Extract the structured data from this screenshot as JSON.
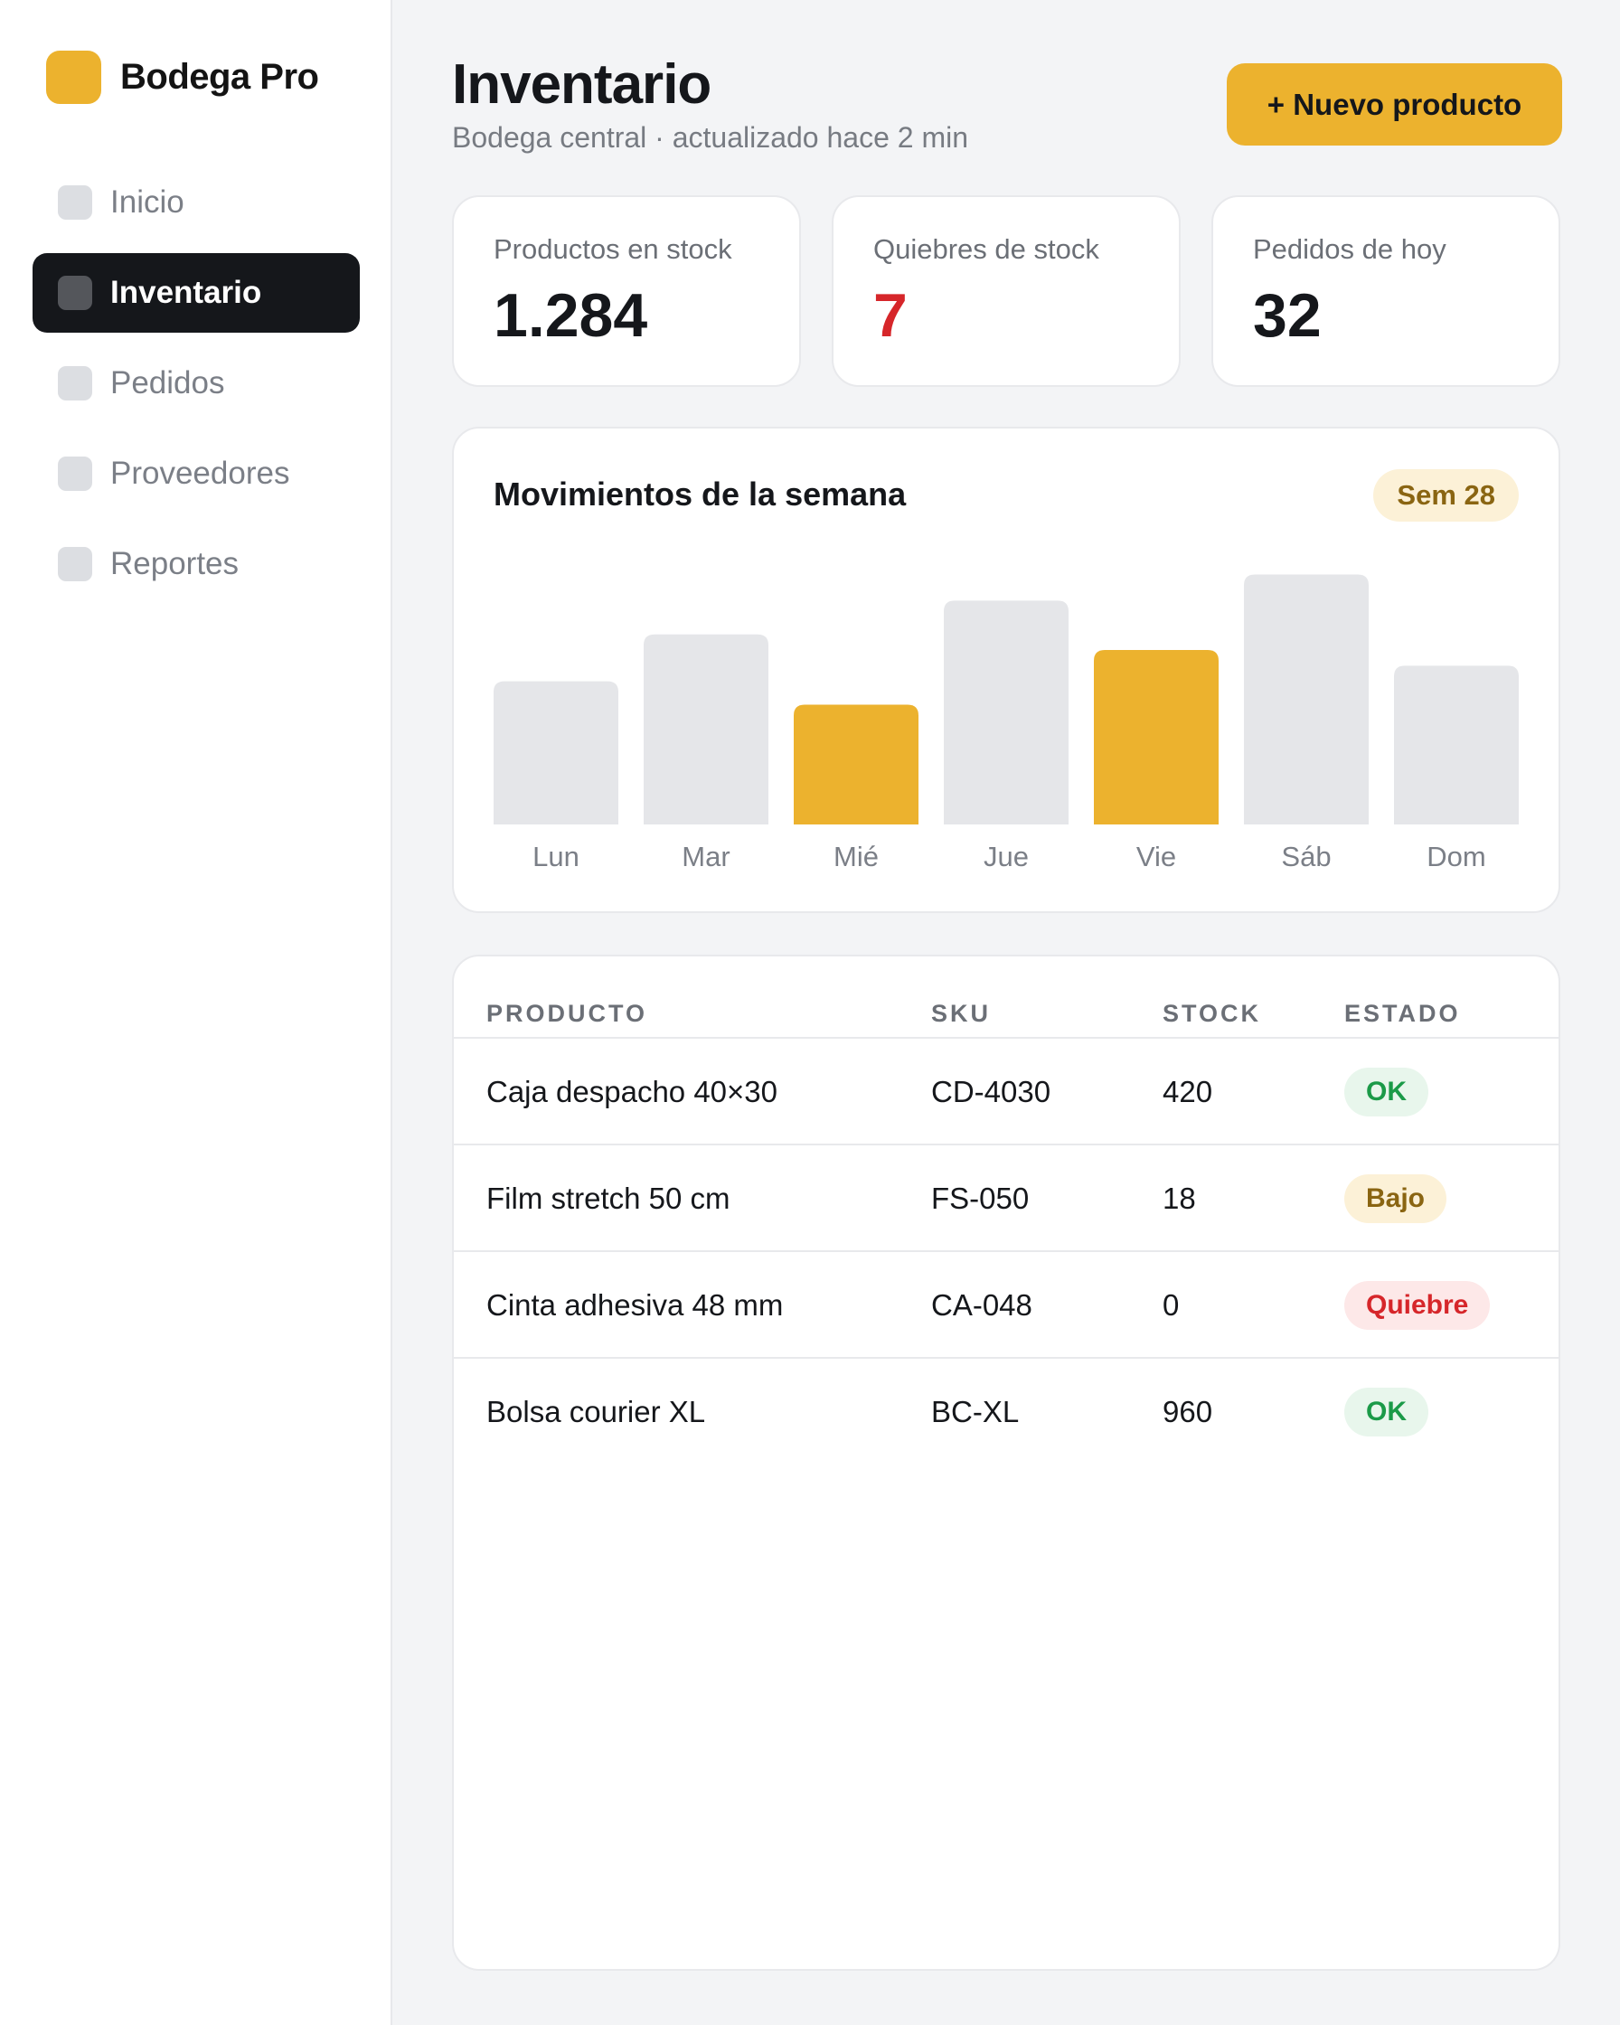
{
  "brand": {
    "name": "Bodega Pro",
    "logo_color": "#ecb22e"
  },
  "sidebar": {
    "items": [
      {
        "label": "Inicio",
        "active": false
      },
      {
        "label": "Inventario",
        "active": true
      },
      {
        "label": "Pedidos",
        "active": false
      },
      {
        "label": "Proveedores",
        "active": false
      },
      {
        "label": "Reportes",
        "active": false
      }
    ]
  },
  "header": {
    "title": "Inventario",
    "subtitle": "Bodega central · actualizado hace 2 min",
    "primary_button": "+ Nuevo producto"
  },
  "stats": [
    {
      "label": "Productos en stock",
      "value": "1.284",
      "alert": false
    },
    {
      "label": "Quiebres de stock",
      "value": "7",
      "alert": true
    },
    {
      "label": "Pedidos de hoy",
      "value": "32",
      "alert": false
    }
  ],
  "chart_data": {
    "type": "bar",
    "title": "Movimientos de la semana",
    "badge": "Sem 28",
    "categories": [
      "Lun",
      "Mar",
      "Mié",
      "Jue",
      "Vie",
      "Sáb",
      "Dom"
    ],
    "values": [
      55,
      73,
      46,
      86,
      67,
      96,
      61
    ],
    "highlighted": [
      "Mié",
      "Vie"
    ],
    "ylim": [
      0,
      100
    ],
    "colors": {
      "default": "#e5e6e9",
      "highlight": "#ecb22e"
    },
    "grid": false
  },
  "table": {
    "columns": [
      "PRODUCTO",
      "SKU",
      "STOCK",
      "ESTADO"
    ],
    "rows": [
      {
        "producto": "Caja despacho 40×30",
        "sku": "CD-4030",
        "stock": "420",
        "estado": "OK",
        "status": "ok"
      },
      {
        "producto": "Film stretch 50 cm",
        "sku": "FS-050",
        "stock": "18",
        "estado": "Bajo",
        "status": "low"
      },
      {
        "producto": "Cinta adhesiva 48 mm",
        "sku": "CA-048",
        "stock": "0",
        "estado": "Quiebre",
        "status": "out"
      },
      {
        "producto": "Bolsa courier XL",
        "sku": "BC-XL",
        "stock": "960",
        "estado": "OK",
        "status": "ok"
      }
    ]
  },
  "colors": {
    "accent": "#ecb22e",
    "ok": "#1b9a48",
    "warning": "#8a6512",
    "danger": "#d6262a"
  }
}
